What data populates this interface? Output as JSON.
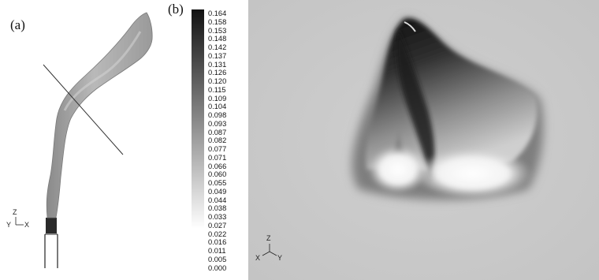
{
  "figure": {
    "panel_a": {
      "label": "(a)",
      "axes": {
        "up": "Z",
        "left": "Y",
        "right": "X"
      }
    },
    "panel_b": {
      "label": "(b)",
      "axes": {
        "up": "Z",
        "left": "X",
        "right": "Y"
      },
      "colorbar": {
        "ticks": [
          "0.164",
          "0.158",
          "0.153",
          "0.148",
          "0.142",
          "0.137",
          "0.131",
          "0.126",
          "0.120",
          "0.115",
          "0.109",
          "0.104",
          "0.098",
          "0.093",
          "0.087",
          "0.082",
          "0.077",
          "0.071",
          "0.066",
          "0.060",
          "0.055",
          "0.049",
          "0.044",
          "0.038",
          "0.033",
          "0.027",
          "0.022",
          "0.016",
          "0.011",
          "0.005",
          "0.000"
        ],
        "colors": {
          "high": "#111111",
          "low": "#ffffff"
        }
      }
    }
  }
}
